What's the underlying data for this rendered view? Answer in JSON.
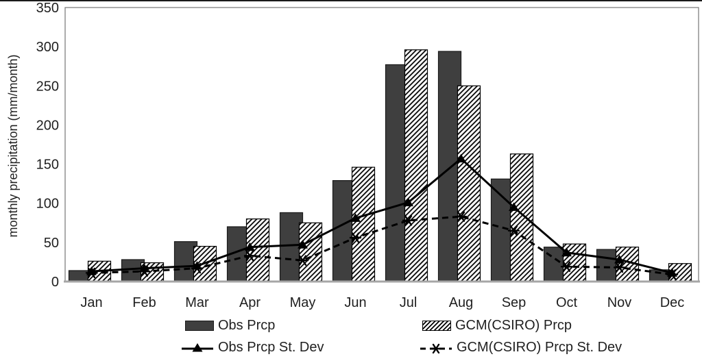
{
  "chart_data": {
    "type": "bar",
    "subtype": "grouped-bars-with-overlaid-lines",
    "title": "",
    "xlabel": "",
    "ylabel": "monthly precipitation (mm/month)",
    "ylim": [
      0,
      350
    ],
    "yticks": [
      0,
      50,
      100,
      150,
      200,
      250,
      300,
      350
    ],
    "grid": false,
    "legend_position": "bottom",
    "categories": [
      "Jan",
      "Feb",
      "Mar",
      "Apr",
      "May",
      "Jun",
      "Jul",
      "Aug",
      "Sep",
      "Oct",
      "Nov",
      "Dec"
    ],
    "series": [
      {
        "name": "Obs Prcp",
        "type": "bar",
        "style": "solid-dark",
        "values": [
          14,
          28,
          51,
          70,
          88,
          129,
          277,
          294,
          131,
          44,
          41,
          15
        ]
      },
      {
        "name": "GCM(CSIRO) Prcp",
        "type": "bar",
        "style": "diagonal-hatch",
        "values": [
          26,
          24,
          45,
          80,
          75,
          146,
          296,
          250,
          163,
          48,
          44,
          23
        ]
      },
      {
        "name": "Obs Prcp St. Dev",
        "type": "line",
        "style": "solid",
        "marker": "triangle",
        "values": [
          13,
          17,
          20,
          44,
          47,
          81,
          101,
          157,
          95,
          37,
          28,
          11
        ]
      },
      {
        "name": "GCM(CSIRO) Prcp St. Dev",
        "type": "line",
        "style": "dashed",
        "marker": "asterisk",
        "values": [
          11,
          13,
          17,
          33,
          27,
          56,
          78,
          83,
          65,
          19,
          18,
          9
        ]
      }
    ],
    "colors": {
      "obs_bar_fill": "#3f3f3f",
      "obs_bar_stroke": "#1a1a1a",
      "hatch_line": "#000000",
      "line_color": "#000000",
      "plot_border": "#7f7f7f",
      "bottom_axis": "#a6a6a6",
      "text": "#1f1f1f"
    }
  }
}
